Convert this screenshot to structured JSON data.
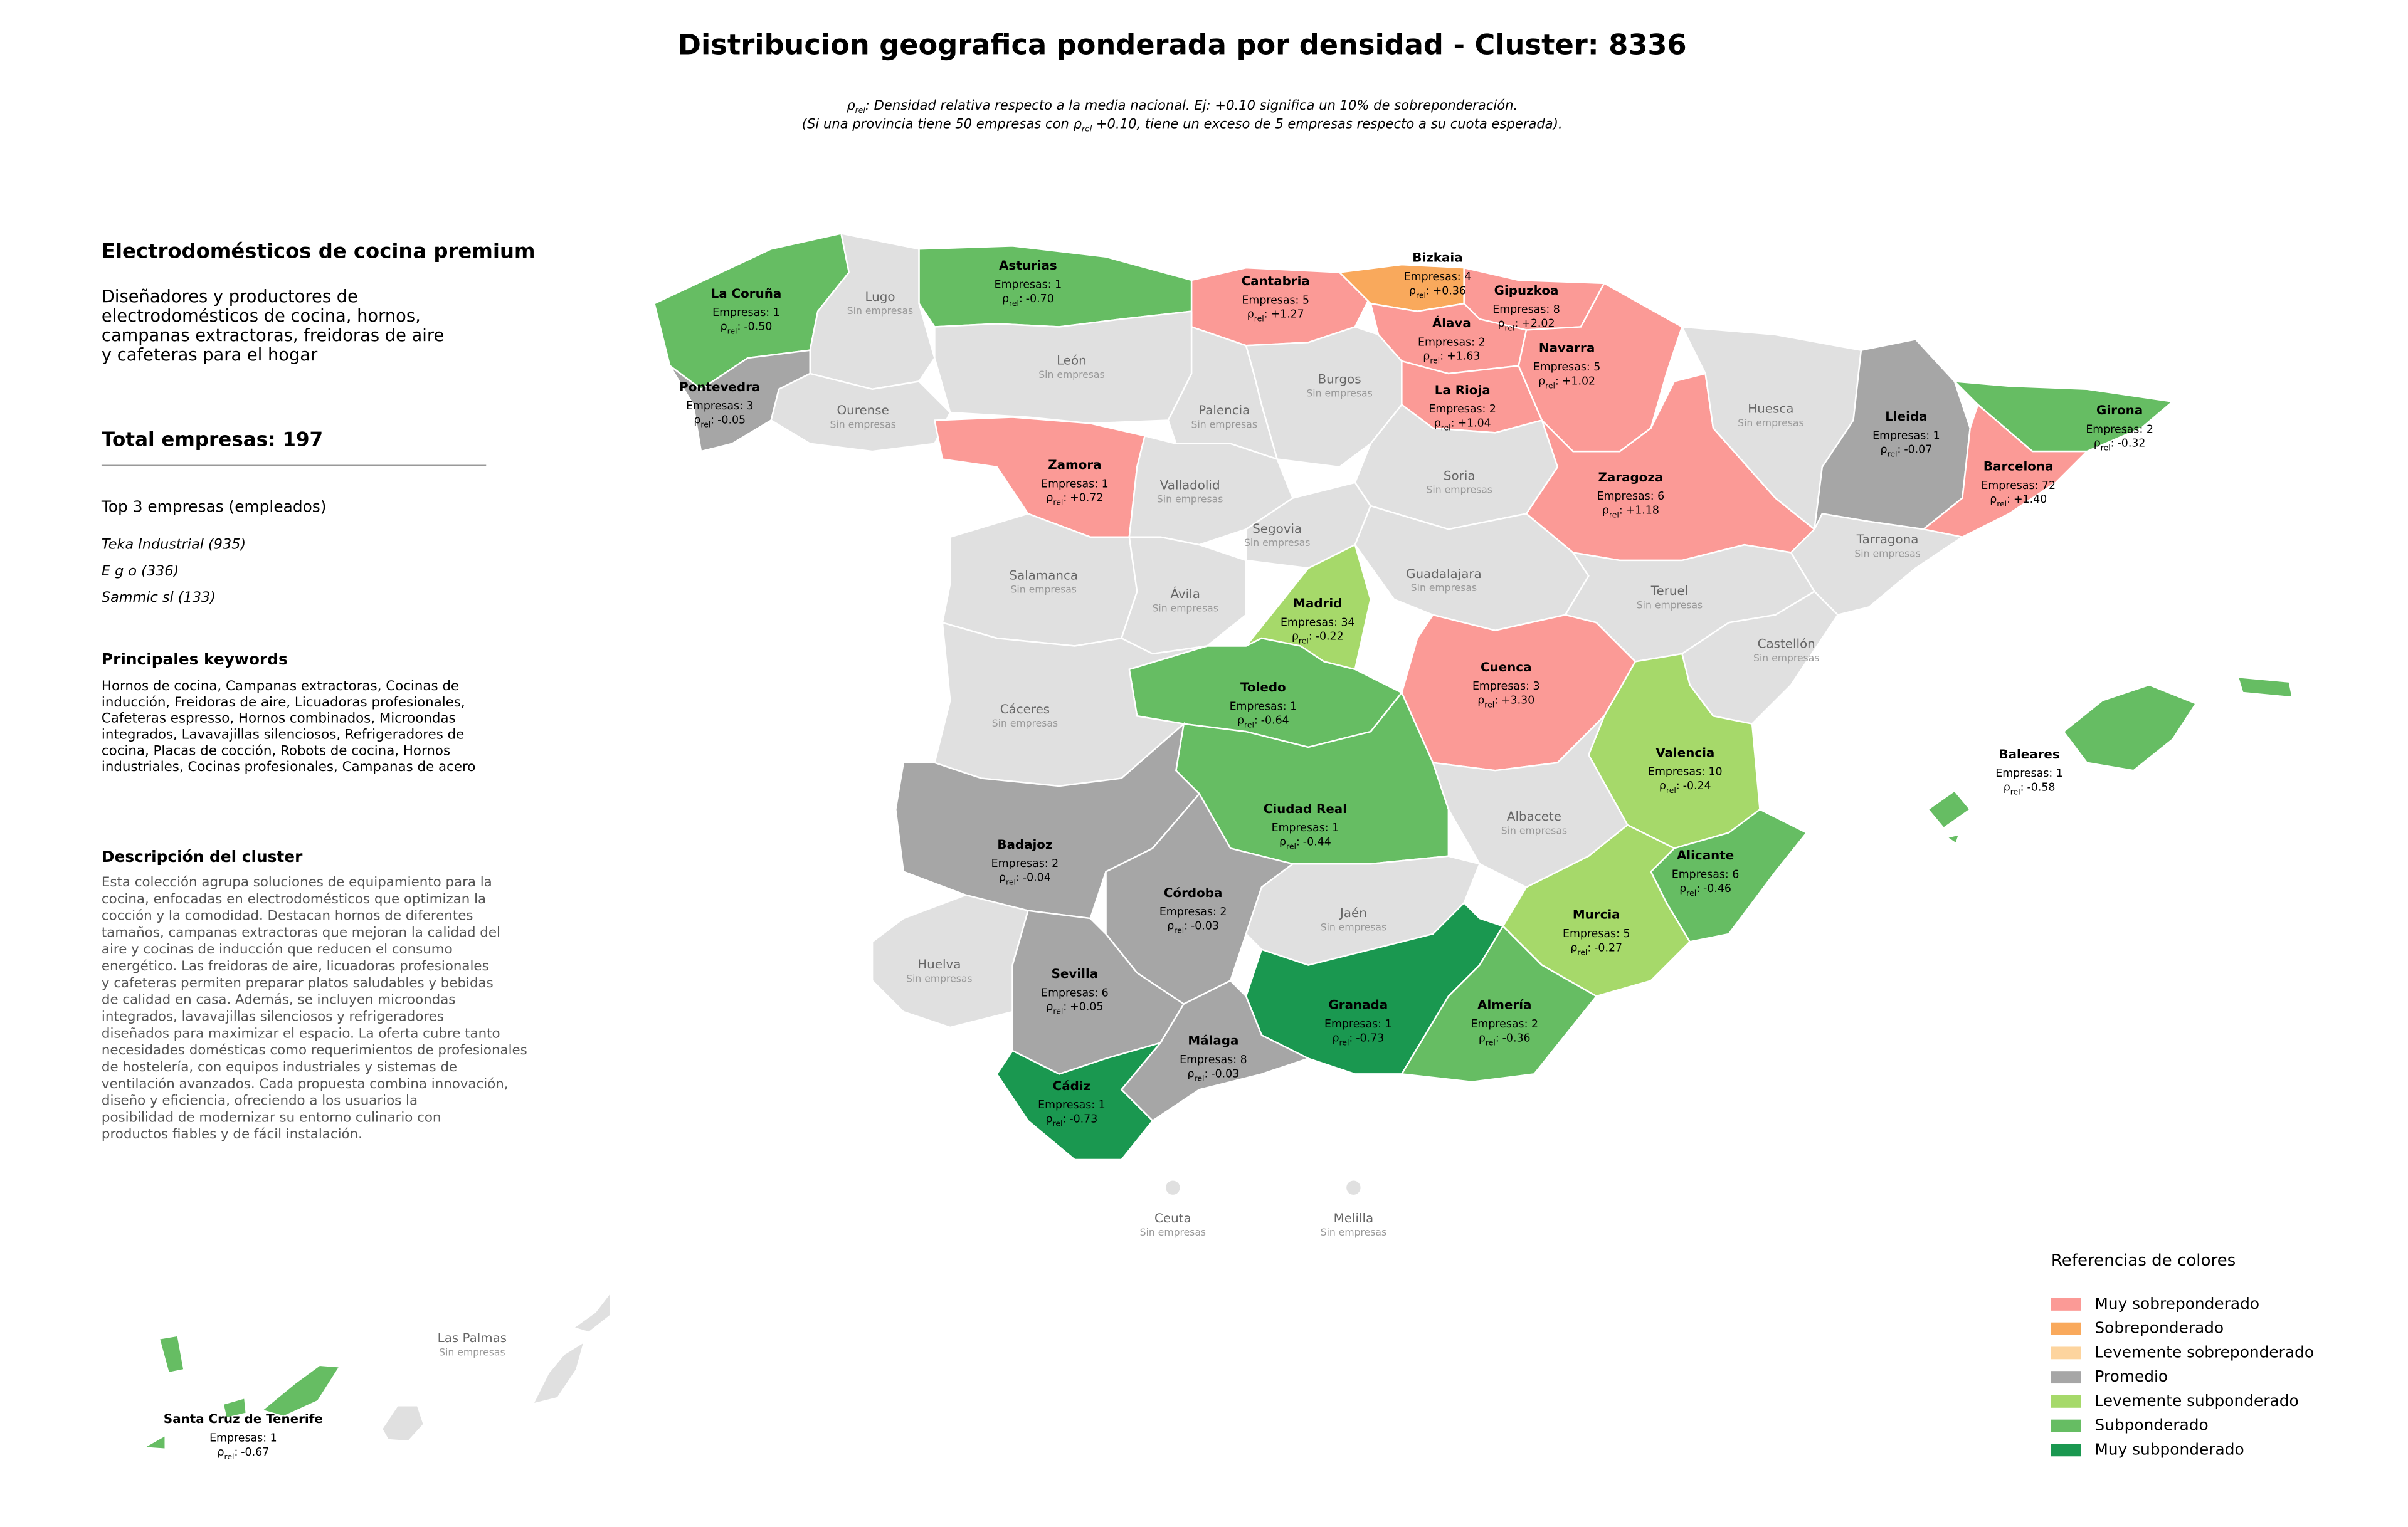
{
  "title": "Distribucion geografica ponderada por densidad - Cluster: 8336",
  "note": {
    "lines": [
      [
        {
          "text": "ρ",
          "sub": false
        },
        {
          "text": "rel",
          "sub": true
        },
        {
          "text": ": Densidad relativa respecto a la media nacional. Ej: +0.10 significa un 10% de sobreponderación.",
          "sub": false
        }
      ],
      [
        {
          "text": "(Si una provincia tiene 50 empresas con ",
          "sub": false
        },
        {
          "text": "ρ",
          "sub": false
        },
        {
          "text": "rel",
          "sub": true
        },
        {
          "text": " +0.10, tiene un exceso de 5 empresas respecto a su cuota esperada).",
          "sub": false
        }
      ]
    ]
  },
  "panel": {
    "heading": "Electrodomésticos de cocina premium",
    "summary": [
      "Diseñadores y productores de",
      "electrodomésticos de cocina, hornos,",
      "campanas extractoras, freidoras de aire",
      "y cafeteras para el hogar"
    ],
    "total": "Total empresas: 197",
    "top_title": "Top 3 empresas (empleados)",
    "top": [
      "Teka Industrial (935)",
      "E g o (336)",
      "Sammic sl (133)"
    ],
    "keywords_title": "Principales keywords",
    "keywords": [
      "Hornos de cocina, Campanas extractoras, Cocinas de",
      "inducción, Freidoras de aire, Licuadoras profesionales,",
      "Cafeteras espresso, Hornos combinados, Microondas",
      "integrados, Lavavajillas silenciosos, Refrigeradores de",
      "cocina, Placas de cocción, Robots de cocina, Hornos",
      "industriales, Cocinas profesionales, Campanas de acero"
    ],
    "description_title": "Descripción del cluster",
    "description": [
      "Esta colección agrupa soluciones de equipamiento para la",
      "cocina, enfocadas en electrodomésticos que optimizan la",
      "cocción y la comodidad. Destacan hornos de diferentes",
      "tamaños, campanas extractoras que mejoran la calidad del",
      "aire y cocinas de inducción que reducen el consumo",
      "energético. Las freidoras de aire, licuadoras profesionales",
      "y cafeteras permiten preparar platos saludables y bebidas",
      "de calidad en casa. Además, se incluyen microondas",
      "integrados, lavavajillas silenciosos y refrigeradores",
      "diseñados para maximizar el espacio. La oferta cubre tanto",
      "necesidades domésticas como requerimientos de profesionales",
      "de hostelería, con equipos industriales y sistemas de",
      "ventilación avanzados. Cada propuesta combina innovación,",
      "diseño y eficiencia, ofreciendo a los usuarios la",
      "posibilidad de modernizar su entorno culinario con",
      "productos fiables y de fácil instalación."
    ]
  },
  "legend": {
    "title": "Referencias de colores",
    "items": [
      {
        "label": "Muy sobreponderado",
        "color": "#fb9a96"
      },
      {
        "label": "Sobreponderado",
        "color": "#f9a95c"
      },
      {
        "label": "Levemente sobreponderado",
        "color": "#fdd49e"
      },
      {
        "label": "Promedio",
        "color": "#a6a6a6"
      },
      {
        "label": "Levemente subponderado",
        "color": "#a6d96a"
      },
      {
        "label": "Subponderado",
        "color": "#66bd63"
      },
      {
        "label": "Muy subponderado",
        "color": "#1a9850"
      }
    ]
  },
  "empty_color": "#e0e0e0",
  "density_symbol": {
    "symbol": "ρ",
    "subscript": "rel",
    "separator": ":"
  },
  "provinces": [
    {
      "name": "La Coruña",
      "companies": "Empresas: 1",
      "density": "-0.50",
      "category": 5
    },
    {
      "name": "Lugo",
      "status": "Sin empresas"
    },
    {
      "name": "Pontevedra",
      "companies": "Empresas: 3",
      "density": "-0.05",
      "category": 3
    },
    {
      "name": "Ourense",
      "status": "Sin empresas"
    },
    {
      "name": "Asturias",
      "companies": "Empresas: 1",
      "density": "-0.70",
      "category": 5
    },
    {
      "name": "León",
      "status": "Sin empresas"
    },
    {
      "name": "Cantabria",
      "companies": "Empresas: 5",
      "density": "+1.27",
      "category": 0
    },
    {
      "name": "Palencia",
      "status": "Sin empresas"
    },
    {
      "name": "Burgos",
      "status": "Sin empresas"
    },
    {
      "name": "Bizkaia",
      "companies": "Empresas: 4",
      "density": "+0.36",
      "category": 1
    },
    {
      "name": "Gipuzkoa",
      "companies": "Empresas: 8",
      "density": "+2.02",
      "category": 0
    },
    {
      "name": "Álava",
      "companies": "Empresas: 2",
      "density": "+1.63",
      "category": 0
    },
    {
      "name": "La Rioja",
      "companies": "Empresas: 2",
      "density": "+1.04",
      "category": 0
    },
    {
      "name": "Zaragoza",
      "companies": "Empresas: 6",
      "density": "+1.18",
      "category": 0
    },
    {
      "name": "Navarra",
      "companies": "Empresas: 5",
      "density": "+1.02",
      "category": 0
    },
    {
      "name": "Huesca",
      "status": "Sin empresas"
    },
    {
      "name": "Lleida",
      "companies": "Empresas: 1",
      "density": "-0.07",
      "category": 3
    },
    {
      "name": "Girona",
      "companies": "Empresas: 2",
      "density": "-0.32",
      "category": 5
    },
    {
      "name": "Barcelona",
      "companies": "Empresas: 72",
      "density": "+1.40",
      "category": 0
    },
    {
      "name": "Tarragona",
      "status": "Sin empresas"
    },
    {
      "name": "Zamora",
      "companies": "Empresas: 1",
      "density": "+0.72",
      "category": 0
    },
    {
      "name": "Valladolid",
      "status": "Sin empresas"
    },
    {
      "name": "Soria",
      "status": "Sin empresas"
    },
    {
      "name": "Segovia",
      "status": "Sin empresas"
    },
    {
      "name": "Salamanca",
      "status": "Sin empresas"
    },
    {
      "name": "Ávila",
      "status": "Sin empresas"
    },
    {
      "name": "Guadalajara",
      "status": "Sin empresas"
    },
    {
      "name": "Madrid",
      "companies": "Empresas: 34",
      "density": "-0.22",
      "category": 4
    },
    {
      "name": "Teruel",
      "status": "Sin empresas"
    },
    {
      "name": "Castellón",
      "status": "Sin empresas"
    },
    {
      "name": "Cuenca",
      "companies": "Empresas: 3",
      "density": "+3.30",
      "category": 0
    },
    {
      "name": "Toledo",
      "companies": "Empresas: 1",
      "density": "-0.64",
      "category": 5
    },
    {
      "name": "Cáceres",
      "status": "Sin empresas"
    },
    {
      "name": "Valencia",
      "companies": "Empresas: 10",
      "density": "-0.24",
      "category": 4
    },
    {
      "name": "Albacete",
      "status": "Sin empresas"
    },
    {
      "name": "Ciudad Real",
      "companies": "Empresas: 1",
      "density": "-0.44",
      "category": 5
    },
    {
      "name": "Badajoz",
      "companies": "Empresas: 2",
      "density": "-0.04",
      "category": 3
    },
    {
      "name": "Córdoba",
      "companies": "Empresas: 2",
      "density": "-0.03",
      "category": 3
    },
    {
      "name": "Jaén",
      "status": "Sin empresas"
    },
    {
      "name": "Alicante",
      "companies": "Empresas: 6",
      "density": "-0.46",
      "category": 5
    },
    {
      "name": "Murcia",
      "companies": "Empresas: 5",
      "density": "-0.27",
      "category": 4
    },
    {
      "name": "Huelva",
      "status": "Sin empresas"
    },
    {
      "name": "Sevilla",
      "companies": "Empresas: 6",
      "density": "+0.05",
      "category": 3
    },
    {
      "name": "Granada",
      "companies": "Empresas: 1",
      "density": "-0.73",
      "category": 6
    },
    {
      "name": "Almería",
      "companies": "Empresas: 2",
      "density": "-0.36",
      "category": 5
    },
    {
      "name": "Málaga",
      "companies": "Empresas: 8",
      "density": "-0.03",
      "category": 3
    },
    {
      "name": "Cádiz",
      "companies": "Empresas: 1",
      "density": "-0.73",
      "category": 6
    },
    {
      "name": "Baleares",
      "companies": "Empresas: 1",
      "density": "-0.58",
      "category": 5
    },
    {
      "name": "Ceuta",
      "status": "Sin empresas"
    },
    {
      "name": "Melilla",
      "status": "Sin empresas"
    },
    {
      "name": "Las Palmas",
      "status": "Sin empresas"
    },
    {
      "name": "Santa Cruz de Tenerife",
      "companies": "Empresas: 1",
      "density": "-0.67",
      "category": 5
    }
  ]
}
